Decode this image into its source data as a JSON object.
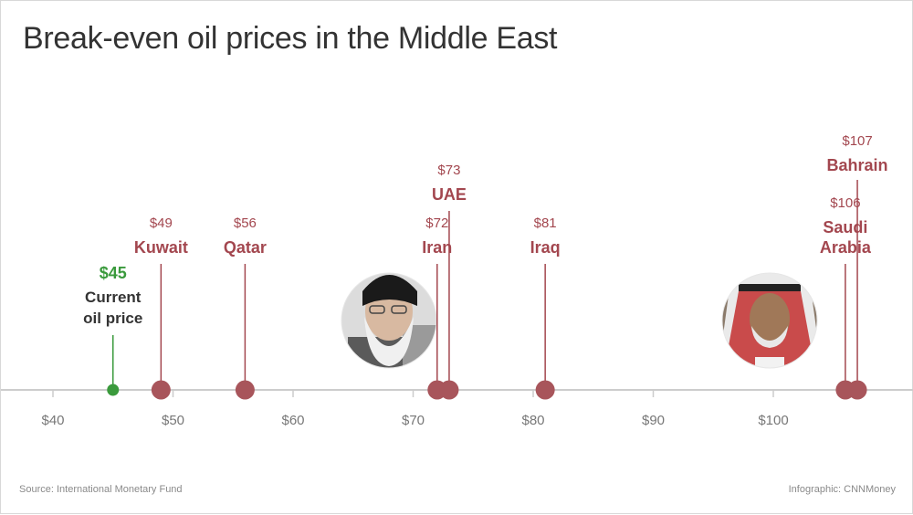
{
  "title": "Break-even oil prices in the Middle East",
  "source": "Source: International Monetary Fund",
  "credit": "Infographic: CNNMoney",
  "colors": {
    "accent": "#a3474f",
    "marker": "#a8555b",
    "current": "#3a9a3c",
    "axis": "#cccccc",
    "tick_text": "#777777",
    "dark_text": "#333333"
  },
  "chart_data": {
    "type": "scatter",
    "title": "Break-even oil prices in the Middle East",
    "xlabel": "",
    "ylabel": "",
    "xlim": [
      36,
      110
    ],
    "x_ticks": [
      40,
      50,
      60,
      70,
      80,
      90,
      100
    ],
    "x_tick_labels": [
      "$40",
      "$50",
      "$60",
      "$70",
      "$80",
      "$90",
      "$100"
    ],
    "current_price": {
      "value": 45,
      "value_label": "$45",
      "label_lines": [
        "Current",
        "oil price"
      ]
    },
    "points": [
      {
        "country_lines": [
          "Kuwait"
        ],
        "value": 49,
        "value_label": "$49",
        "level": 1
      },
      {
        "country_lines": [
          "Qatar"
        ],
        "value": 56,
        "value_label": "$56",
        "level": 1
      },
      {
        "country_lines": [
          "Iran"
        ],
        "value": 72,
        "value_label": "$72",
        "level": 1
      },
      {
        "country_lines": [
          "UAE"
        ],
        "value": 73,
        "value_label": "$73",
        "level": 2
      },
      {
        "country_lines": [
          "Iraq"
        ],
        "value": 81,
        "value_label": "$81",
        "level": 1
      },
      {
        "country_lines": [
          "Saudi",
          "Arabia"
        ],
        "value": 106,
        "value_label": "$106",
        "level": 1
      },
      {
        "country_lines": [
          "Bahrain"
        ],
        "value": 107,
        "value_label": "$107",
        "level": 3
      }
    ]
  }
}
